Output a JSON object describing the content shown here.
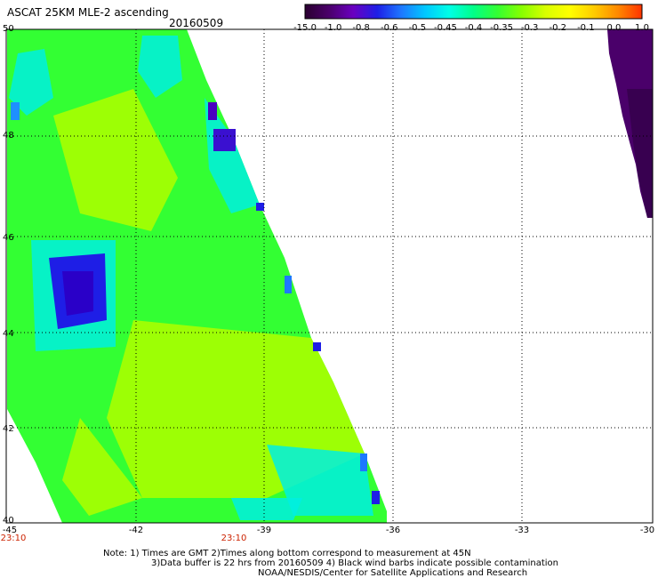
{
  "header": {
    "title": "ASCAT 25KM MLE-2 ascending",
    "date": "20160509"
  },
  "colorbar": {
    "labels": [
      "-15.0",
      "-1.0",
      "-0.8",
      "-0.6",
      "-0.5",
      "-0.45",
      "-0.4",
      "-0.35",
      "-0.3",
      "-0.2",
      "-0.1",
      "0.0",
      "1.0"
    ],
    "colors": [
      "#2a0030",
      "#4a006a",
      "#6a00b0",
      "#1e1ee6",
      "#1e78ff",
      "#00c8ff",
      "#00f0e0",
      "#00ff66",
      "#44ff00",
      "#b8ff00",
      "#ffff00",
      "#ff9900",
      "#ff3300"
    ]
  },
  "axes": {
    "lat_labels": [
      "50",
      "48",
      "46",
      "44",
      "42",
      "40"
    ],
    "lon_labels": [
      "-45",
      "-42",
      "-39",
      "-36",
      "-33",
      "-30"
    ],
    "time_labels": [
      "23:10",
      "23:10"
    ]
  },
  "notes": {
    "line1": "Note: 1) Times are GMT 2)Times along bottom correspond to measurement at 45N",
    "line2": "3)Data buffer is 22 hrs from 20160509 4) Black wind barbs indicate possible contamination",
    "line3": "NOAA/NESDIS/Center for Satellite Applications and Research"
  },
  "map_colors": {
    "low_purple": "#4a006a",
    "dark_purple": "#380050",
    "blue": "#1e1ee6",
    "cyan": "#00f0e0",
    "green": "#33ff33",
    "yellow_green": "#a8ff00",
    "light_blue": "#1e90ff"
  }
}
